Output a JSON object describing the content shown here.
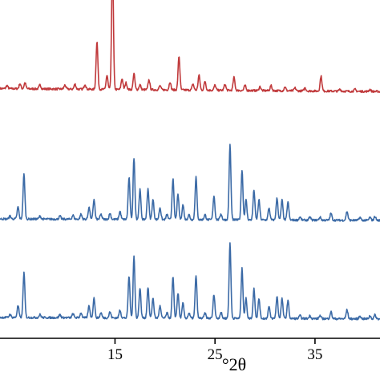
{
  "chart_data": {
    "type": "line",
    "xlabel": "°2θ",
    "ylabel": "",
    "xlim": [
      3.5,
      41.5
    ],
    "ylim": [
      0,
      3.4
    ],
    "grid": false,
    "legend": "none",
    "xticks": [
      15,
      25,
      35
    ],
    "xtick_labels": [
      "15",
      "25",
      "35"
    ],
    "series": [
      {
        "color": "#c0393b",
        "offset": 2.45,
        "peaks": [
          [
            4.2,
            0.03
          ],
          [
            5.5,
            0.05
          ],
          [
            6.0,
            0.06
          ],
          [
            7.5,
            0.04
          ],
          [
            10.0,
            0.04
          ],
          [
            11.0,
            0.05
          ],
          [
            12.0,
            0.05
          ],
          [
            13.2,
            0.48
          ],
          [
            14.2,
            0.14
          ],
          [
            14.75,
            1.27
          ],
          [
            15.7,
            0.11
          ],
          [
            16.1,
            0.07
          ],
          [
            16.9,
            0.16
          ],
          [
            17.5,
            0.05
          ],
          [
            18.4,
            0.1
          ],
          [
            19.5,
            0.04
          ],
          [
            20.5,
            0.08
          ],
          [
            21.4,
            0.34
          ],
          [
            22.8,
            0.06
          ],
          [
            23.4,
            0.15
          ],
          [
            24.0,
            0.09
          ],
          [
            25.0,
            0.05
          ],
          [
            26.0,
            0.06
          ],
          [
            26.9,
            0.13
          ],
          [
            28.0,
            0.05
          ],
          [
            29.5,
            0.04
          ],
          [
            30.6,
            0.05
          ],
          [
            32.0,
            0.04
          ],
          [
            33.0,
            0.03
          ],
          [
            34.0,
            0.03
          ],
          [
            35.6,
            0.15
          ],
          [
            37.5,
            0.02
          ],
          [
            39.0,
            0.02
          ],
          [
            40.5,
            0.02
          ]
        ],
        "baseline": 0.06
      },
      {
        "color": "#3b6aa6",
        "offset": 1.17,
        "peaks": [
          [
            4.5,
            0.03
          ],
          [
            5.3,
            0.12
          ],
          [
            5.9,
            0.45
          ],
          [
            7.5,
            0.03
          ],
          [
            9.5,
            0.03
          ],
          [
            10.8,
            0.04
          ],
          [
            11.6,
            0.05
          ],
          [
            12.4,
            0.12
          ],
          [
            12.9,
            0.2
          ],
          [
            13.6,
            0.05
          ],
          [
            14.5,
            0.06
          ],
          [
            15.5,
            0.08
          ],
          [
            16.4,
            0.42
          ],
          [
            16.9,
            0.62
          ],
          [
            17.5,
            0.3
          ],
          [
            18.3,
            0.31
          ],
          [
            18.8,
            0.2
          ],
          [
            19.5,
            0.12
          ],
          [
            20.2,
            0.05
          ],
          [
            20.8,
            0.41
          ],
          [
            21.3,
            0.25
          ],
          [
            21.8,
            0.15
          ],
          [
            22.4,
            0.05
          ],
          [
            23.1,
            0.43
          ],
          [
            24.0,
            0.05
          ],
          [
            24.9,
            0.24
          ],
          [
            25.6,
            0.06
          ],
          [
            26.5,
            0.75
          ],
          [
            27.7,
            0.5
          ],
          [
            28.1,
            0.2
          ],
          [
            28.9,
            0.3
          ],
          [
            29.4,
            0.2
          ],
          [
            30.4,
            0.12
          ],
          [
            31.2,
            0.22
          ],
          [
            31.7,
            0.2
          ],
          [
            32.3,
            0.18
          ],
          [
            33.5,
            0.03
          ],
          [
            34.5,
            0.03
          ],
          [
            35.5,
            0.03
          ],
          [
            36.6,
            0.07
          ],
          [
            38.2,
            0.09
          ],
          [
            39.5,
            0.03
          ],
          [
            40.5,
            0.03
          ],
          [
            41.0,
            0.04
          ]
        ],
        "baseline": 0.03
      },
      {
        "color": "#3b6aa6",
        "offset": 0.18,
        "peaks": [
          [
            4.5,
            0.03
          ],
          [
            5.3,
            0.12
          ],
          [
            5.9,
            0.45
          ],
          [
            7.5,
            0.03
          ],
          [
            9.5,
            0.03
          ],
          [
            10.8,
            0.04
          ],
          [
            11.6,
            0.05
          ],
          [
            12.4,
            0.12
          ],
          [
            12.9,
            0.2
          ],
          [
            13.6,
            0.05
          ],
          [
            14.5,
            0.06
          ],
          [
            15.5,
            0.08
          ],
          [
            16.4,
            0.42
          ],
          [
            16.9,
            0.62
          ],
          [
            17.5,
            0.3
          ],
          [
            18.3,
            0.31
          ],
          [
            18.8,
            0.2
          ],
          [
            19.5,
            0.12
          ],
          [
            20.2,
            0.05
          ],
          [
            20.8,
            0.41
          ],
          [
            21.3,
            0.25
          ],
          [
            21.8,
            0.15
          ],
          [
            22.4,
            0.05
          ],
          [
            23.1,
            0.43
          ],
          [
            24.0,
            0.05
          ],
          [
            24.9,
            0.24
          ],
          [
            25.6,
            0.06
          ],
          [
            26.5,
            0.75
          ],
          [
            27.7,
            0.5
          ],
          [
            28.1,
            0.2
          ],
          [
            28.9,
            0.3
          ],
          [
            29.4,
            0.2
          ],
          [
            30.4,
            0.12
          ],
          [
            31.2,
            0.22
          ],
          [
            31.7,
            0.2
          ],
          [
            32.3,
            0.18
          ],
          [
            33.5,
            0.03
          ],
          [
            34.5,
            0.03
          ],
          [
            35.5,
            0.03
          ],
          [
            36.6,
            0.07
          ],
          [
            38.2,
            0.09
          ],
          [
            39.5,
            0.03
          ],
          [
            40.5,
            0.03
          ],
          [
            41.0,
            0.04
          ]
        ],
        "baseline": 0.03
      }
    ]
  }
}
